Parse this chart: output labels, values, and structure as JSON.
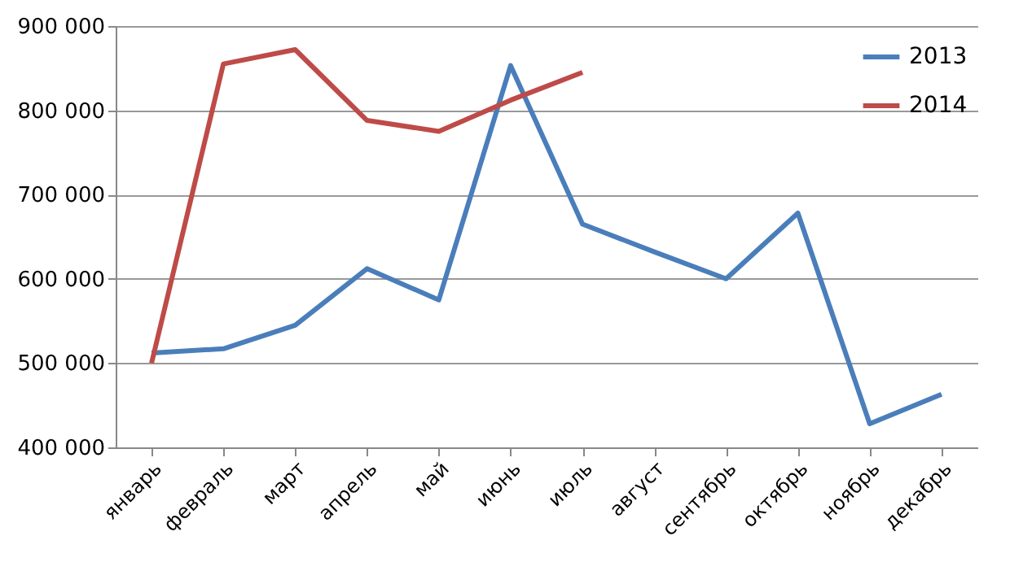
{
  "chart_data": {
    "type": "line",
    "categories": [
      "январь",
      "февраль",
      "март",
      "апрель",
      "май",
      "июнь",
      "июль",
      "август",
      "сентябрь",
      "октябрь",
      "ноябрь",
      "декабрь"
    ],
    "series": [
      {
        "name": "2013",
        "color": "#4a7ebb",
        "values": [
          512000,
          517000,
          545000,
          612000,
          575000,
          853000,
          665000,
          632000,
          600000,
          678000,
          428000,
          463000
        ]
      },
      {
        "name": "2014",
        "color": "#be4b48",
        "values": [
          500000,
          855000,
          872000,
          788000,
          775000,
          812000,
          845000,
          null,
          null,
          null,
          null,
          null
        ]
      }
    ],
    "ylim": [
      400000,
      900000
    ],
    "yticks": [
      {
        "value": 400000,
        "label": "400 000"
      },
      {
        "value": 500000,
        "label": "500 000"
      },
      {
        "value": 600000,
        "label": "600 000"
      },
      {
        "value": 700000,
        "label": "700 000"
      },
      {
        "value": 800000,
        "label": "800 000"
      },
      {
        "value": 900000,
        "label": "900 000"
      }
    ],
    "grid": "y",
    "legend": "top right",
    "marker": "none",
    "line_style": "solid"
  }
}
